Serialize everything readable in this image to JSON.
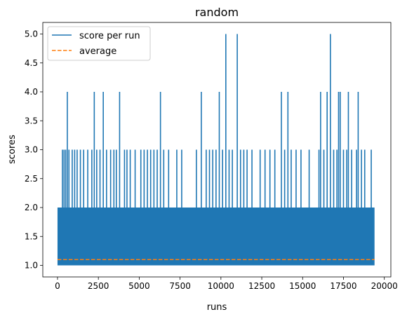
{
  "chart_data": {
    "type": "line",
    "title": "random",
    "xlabel": "runs",
    "ylabel": "scores",
    "xlim": [
      -900,
      20400
    ],
    "ylim": [
      0.8,
      5.2
    ],
    "xticks": [
      0,
      2500,
      5000,
      7500,
      10000,
      12500,
      15000,
      17500,
      20000
    ],
    "xtick_labels": [
      "0",
      "2500",
      "5000",
      "7500",
      "10000",
      "12500",
      "15000",
      "17500",
      "20000"
    ],
    "yticks": [
      1.0,
      1.5,
      2.0,
      2.5,
      3.0,
      3.5,
      4.0,
      4.5,
      5.0
    ],
    "ytick_labels": [
      "1.0",
      "1.5",
      "2.0",
      "2.5",
      "3.0",
      "3.5",
      "4.0",
      "4.5",
      "5.0"
    ],
    "grid": false,
    "legend_position": "upper-left",
    "series": [
      {
        "name": "score per run",
        "color": "#1f77b4",
        "style": "solid",
        "n_runs": 19400,
        "base_band": [
          1,
          2
        ],
        "spikes": [
          {
            "x": 600,
            "y": 4
          },
          {
            "x": 2250,
            "y": 4
          },
          {
            "x": 2800,
            "y": 4
          },
          {
            "x": 3800,
            "y": 4
          },
          {
            "x": 6300,
            "y": 4
          },
          {
            "x": 8800,
            "y": 4
          },
          {
            "x": 9900,
            "y": 4
          },
          {
            "x": 10300,
            "y": 5
          },
          {
            "x": 11000,
            "y": 5
          },
          {
            "x": 13700,
            "y": 4
          },
          {
            "x": 14100,
            "y": 4
          },
          {
            "x": 16100,
            "y": 4
          },
          {
            "x": 16500,
            "y": 4
          },
          {
            "x": 16700,
            "y": 5
          },
          {
            "x": 17200,
            "y": 4
          },
          {
            "x": 17300,
            "y": 4
          },
          {
            "x": 17800,
            "y": 4
          },
          {
            "x": 18400,
            "y": 4
          },
          {
            "x": 300,
            "y": 3
          },
          {
            "x": 400,
            "y": 3
          },
          {
            "x": 500,
            "y": 3
          },
          {
            "x": 700,
            "y": 3
          },
          {
            "x": 900,
            "y": 3
          },
          {
            "x": 1050,
            "y": 3
          },
          {
            "x": 1200,
            "y": 3
          },
          {
            "x": 1400,
            "y": 3
          },
          {
            "x": 1600,
            "y": 3
          },
          {
            "x": 1850,
            "y": 3
          },
          {
            "x": 2100,
            "y": 3
          },
          {
            "x": 2400,
            "y": 3
          },
          {
            "x": 2600,
            "y": 3
          },
          {
            "x": 3000,
            "y": 3
          },
          {
            "x": 3250,
            "y": 3
          },
          {
            "x": 3450,
            "y": 3
          },
          {
            "x": 3600,
            "y": 3
          },
          {
            "x": 4100,
            "y": 3
          },
          {
            "x": 4250,
            "y": 3
          },
          {
            "x": 4450,
            "y": 3
          },
          {
            "x": 4750,
            "y": 3
          },
          {
            "x": 5100,
            "y": 3
          },
          {
            "x": 5300,
            "y": 3
          },
          {
            "x": 5500,
            "y": 3
          },
          {
            "x": 5700,
            "y": 3
          },
          {
            "x": 5900,
            "y": 3
          },
          {
            "x": 6100,
            "y": 3
          },
          {
            "x": 6500,
            "y": 3
          },
          {
            "x": 6800,
            "y": 3
          },
          {
            "x": 7300,
            "y": 3
          },
          {
            "x": 7600,
            "y": 3
          },
          {
            "x": 8500,
            "y": 3
          },
          {
            "x": 9100,
            "y": 3
          },
          {
            "x": 9300,
            "y": 3
          },
          {
            "x": 9500,
            "y": 3
          },
          {
            "x": 9700,
            "y": 3
          },
          {
            "x": 10100,
            "y": 3
          },
          {
            "x": 10500,
            "y": 3
          },
          {
            "x": 10700,
            "y": 3
          },
          {
            "x": 11200,
            "y": 3
          },
          {
            "x": 11400,
            "y": 3
          },
          {
            "x": 11600,
            "y": 3
          },
          {
            "x": 11900,
            "y": 3
          },
          {
            "x": 12400,
            "y": 3
          },
          {
            "x": 12700,
            "y": 3
          },
          {
            "x": 13000,
            "y": 3
          },
          {
            "x": 13300,
            "y": 3
          },
          {
            "x": 13900,
            "y": 3
          },
          {
            "x": 14300,
            "y": 3
          },
          {
            "x": 14600,
            "y": 3
          },
          {
            "x": 14900,
            "y": 3
          },
          {
            "x": 15400,
            "y": 3
          },
          {
            "x": 16000,
            "y": 3
          },
          {
            "x": 16300,
            "y": 3
          },
          {
            "x": 16900,
            "y": 3
          },
          {
            "x": 17100,
            "y": 3
          },
          {
            "x": 17500,
            "y": 3
          },
          {
            "x": 17700,
            "y": 3
          },
          {
            "x": 18000,
            "y": 3
          },
          {
            "x": 18300,
            "y": 3
          },
          {
            "x": 18600,
            "y": 3
          },
          {
            "x": 18800,
            "y": 3
          },
          {
            "x": 19200,
            "y": 3
          }
        ]
      },
      {
        "name": "average",
        "color": "#ff7f0e",
        "style": "dashed",
        "y": 1.1,
        "x_range": [
          0,
          19400
        ]
      }
    ]
  }
}
